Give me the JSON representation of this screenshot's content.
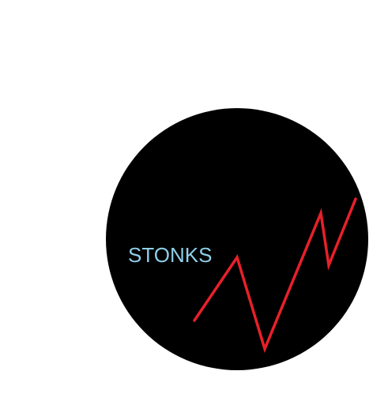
{
  "logo": {
    "text": "STONKS",
    "colors": {
      "background": "#ffffff",
      "circle": "#000000",
      "text": "#8ecfe8",
      "line": "#e8202a"
    }
  }
}
